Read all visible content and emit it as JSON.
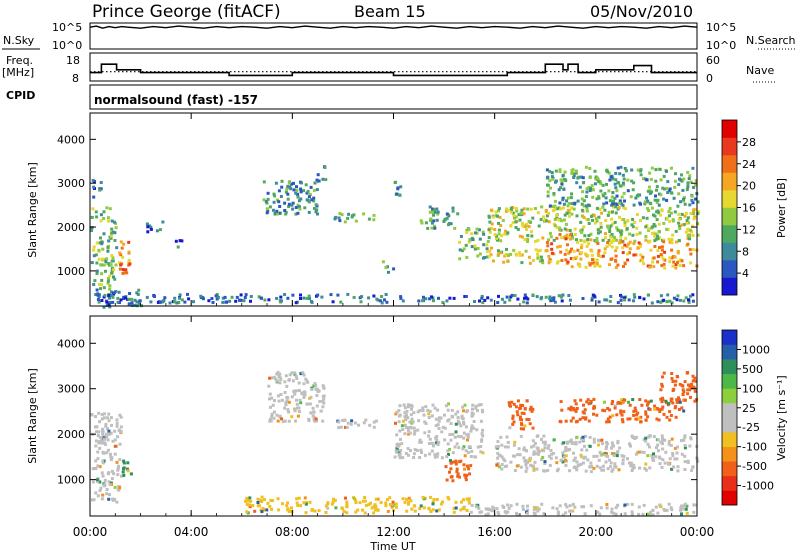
{
  "header": {
    "station": "Prince George (fitACF)",
    "beam": "Beam 15",
    "date": "05/Nov/2010"
  },
  "status_panel": {
    "nsky_label": "N.Sky",
    "nsky_ticks": [
      "10^5",
      "10^0"
    ],
    "nsearch_label": "N.Search",
    "nsearch_ticks": [
      "10^5",
      "10^0"
    ],
    "freq_label": [
      "Freq.",
      "[MHz]"
    ],
    "freq_ticks": [
      "18",
      "8"
    ],
    "nave_label": "Nave",
    "nave_ticks": [
      "60",
      "0"
    ],
    "cpid_label": "CPID",
    "cpid_text": "normalsound (fast) -157",
    "nsky_trace_log": [
      [
        0,
        4.2
      ],
      [
        0.25,
        4.4
      ],
      [
        0.5,
        4.0
      ],
      [
        0.75,
        4.3
      ],
      [
        1.0,
        4.1
      ],
      [
        1.25,
        4.3
      ],
      [
        1.5,
        4.2
      ],
      [
        2.0,
        4.0
      ],
      [
        2.5,
        4.3
      ],
      [
        3.0,
        4.1
      ],
      [
        3.5,
        4.4
      ],
      [
        4.0,
        4.2
      ],
      [
        4.5,
        4.0
      ],
      [
        5.0,
        4.3
      ],
      [
        5.5,
        4.1
      ],
      [
        6.0,
        4.3
      ],
      [
        6.5,
        4.2
      ],
      [
        7.0,
        4.0
      ],
      [
        7.5,
        4.3
      ],
      [
        8.0,
        4.1
      ],
      [
        8.5,
        4.4
      ],
      [
        9.0,
        4.2
      ],
      [
        9.5,
        4.0
      ],
      [
        10.0,
        4.3
      ],
      [
        10.5,
        4.1
      ],
      [
        11.0,
        4.3
      ],
      [
        11.5,
        4.2
      ],
      [
        12.0,
        4.0
      ],
      [
        12.5,
        4.3
      ],
      [
        13.0,
        4.1
      ],
      [
        13.5,
        4.4
      ],
      [
        14.0,
        4.2
      ],
      [
        14.5,
        4.0
      ],
      [
        15.0,
        4.3
      ],
      [
        15.5,
        4.1
      ],
      [
        16.0,
        4.3
      ],
      [
        16.5,
        4.2
      ],
      [
        17.0,
        4.0
      ],
      [
        17.5,
        4.3
      ],
      [
        18.0,
        4.1
      ],
      [
        18.5,
        4.4
      ],
      [
        19.0,
        4.2
      ],
      [
        19.5,
        4.0
      ],
      [
        20.0,
        4.3
      ],
      [
        20.5,
        4.1
      ],
      [
        21.0,
        4.3
      ],
      [
        21.5,
        4.2
      ],
      [
        22.0,
        4.0
      ],
      [
        22.5,
        4.3
      ],
      [
        23.0,
        4.1
      ],
      [
        23.5,
        4.4
      ],
      [
        24.0,
        4.2
      ]
    ],
    "freq_trace_mhz": [
      [
        0,
        11.0
      ],
      [
        0.45,
        11.0
      ],
      [
        0.45,
        14.0
      ],
      [
        1.05,
        14.0
      ],
      [
        1.05,
        12.0
      ],
      [
        2.0,
        12.0
      ],
      [
        2.0,
        11.0
      ],
      [
        5.5,
        11.0
      ],
      [
        5.5,
        10.0
      ],
      [
        8.0,
        10.0
      ],
      [
        8.0,
        11.0
      ],
      [
        12.0,
        11.0
      ],
      [
        12.0,
        10.0
      ],
      [
        16.5,
        10.0
      ],
      [
        16.5,
        11.0
      ],
      [
        18.0,
        11.0
      ],
      [
        18.0,
        14.0
      ],
      [
        18.7,
        14.0
      ],
      [
        18.7,
        12.0
      ],
      [
        18.9,
        12.0
      ],
      [
        18.9,
        14.0
      ],
      [
        19.3,
        14.0
      ],
      [
        19.3,
        11.0
      ],
      [
        20.0,
        11.0
      ],
      [
        20.0,
        12.0
      ],
      [
        21.5,
        12.0
      ],
      [
        21.5,
        13.5
      ],
      [
        22.2,
        13.5
      ],
      [
        22.2,
        11.0
      ],
      [
        24.0,
        11.0
      ]
    ],
    "nave_dotted_level": 20
  },
  "range_time_panels": {
    "x_axis": {
      "label": "Time UT",
      "ticks": [
        "00:00",
        "04:00",
        "08:00",
        "12:00",
        "16:00",
        "20:00",
        "00:00"
      ],
      "range_hours": [
        0,
        24
      ]
    },
    "y_axis": {
      "label": "Slant Range [km]",
      "ticks": [
        "1000",
        "2000",
        "3000",
        "4000"
      ],
      "range_km": [
        200,
        4600
      ]
    }
  },
  "power_colorbar": {
    "label": "Power [dB]",
    "ticks": [
      "4",
      "8",
      "12",
      "16",
      "20",
      "24",
      "28"
    ],
    "colors": [
      "#1818d0",
      "#2a58c0",
      "#3c8a9a",
      "#4fa860",
      "#8fca40",
      "#e6d830",
      "#f5a623",
      "#f07018",
      "#e83820",
      "#e00000"
    ]
  },
  "velocity_colorbar": {
    "label": "Velocity [m s⁻¹]",
    "ticks": [
      "1000",
      "500",
      "100",
      "25",
      "-25",
      "-100",
      "-500",
      "-1000"
    ],
    "colors": [
      "#1a30c8",
      "#2460a8",
      "#2f8f5a",
      "#4cb848",
      "#8ccf3c",
      "#bfbfbf",
      "#bfbfbf",
      "#f0c020",
      "#f59018",
      "#f06018",
      "#e83018",
      "#e00000"
    ]
  },
  "chart_data": [
    {
      "type": "heatmap",
      "title": "Power",
      "xlabel": "Time UT",
      "ylabel": "Slant Range [km]",
      "xlim": [
        0,
        24
      ],
      "ylim": [
        200,
        4600
      ],
      "units": "dB",
      "regions": [
        {
          "t0": 0.0,
          "t1": 1.0,
          "r0": 600,
          "r1": 2500,
          "value": 12
        },
        {
          "t0": 0.0,
          "t1": 0.4,
          "r0": 2700,
          "r1": 3100,
          "value": 6
        },
        {
          "t0": 1.1,
          "t1": 1.6,
          "r0": 900,
          "r1": 1700,
          "value": 22
        },
        {
          "t0": 0.2,
          "t1": 2.0,
          "r0": 200,
          "r1": 600,
          "value": 6
        },
        {
          "t0": 2.2,
          "t1": 3.0,
          "r0": 1900,
          "r1": 2200,
          "value": 6
        },
        {
          "t0": 3.3,
          "t1": 3.6,
          "r0": 1500,
          "r1": 1800,
          "value": 6
        },
        {
          "t0": 6.8,
          "t1": 9.0,
          "r0": 2300,
          "r1": 3100,
          "value": 8
        },
        {
          "t0": 8.9,
          "t1": 9.3,
          "r0": 3000,
          "r1": 3500,
          "value": 8
        },
        {
          "t0": 9.6,
          "t1": 11.2,
          "r0": 2150,
          "r1": 2350,
          "value": 10
        },
        {
          "t0": 11.5,
          "t1": 12.0,
          "r0": 1000,
          "r1": 1300,
          "value": 8
        },
        {
          "t0": 12.0,
          "t1": 12.3,
          "r0": 2700,
          "r1": 3100,
          "value": 8
        },
        {
          "t0": 13.0,
          "t1": 14.5,
          "r0": 2000,
          "r1": 2500,
          "value": 10
        },
        {
          "t0": 14.5,
          "t1": 15.7,
          "r0": 1300,
          "r1": 2000,
          "value": 12
        },
        {
          "t0": 15.7,
          "t1": 18.0,
          "r0": 1200,
          "r1": 1600,
          "value": 16
        },
        {
          "t0": 15.7,
          "t1": 24.0,
          "r0": 1700,
          "r1": 2500,
          "value": 14
        },
        {
          "t0": 18.0,
          "t1": 19.0,
          "r0": 1200,
          "r1": 1900,
          "value": 22
        },
        {
          "t0": 19.0,
          "t1": 24.0,
          "r0": 1100,
          "r1": 1700,
          "value": 20
        },
        {
          "t0": 18.0,
          "t1": 24.0,
          "r0": 2500,
          "r1": 3400,
          "value": 10
        },
        {
          "t0": 0.0,
          "t1": 24.0,
          "r0": 300,
          "r1": 500,
          "value": 6
        }
      ]
    },
    {
      "type": "heatmap",
      "title": "Velocity",
      "xlabel": "Time UT",
      "ylabel": "Slant Range [km]",
      "xlim": [
        0,
        24
      ],
      "ylim": [
        200,
        4600
      ],
      "units": "m/s",
      "regions": [
        {
          "t0": 0.0,
          "t1": 1.2,
          "r0": 500,
          "r1": 2500,
          "value": 0
        },
        {
          "t0": 1.2,
          "t1": 1.6,
          "r0": 1100,
          "r1": 1500,
          "value": 120
        },
        {
          "t0": 7.0,
          "t1": 9.2,
          "r0": 2300,
          "r1": 3400,
          "value": 0
        },
        {
          "t0": 9.6,
          "t1": 11.3,
          "r0": 2150,
          "r1": 2350,
          "value": 0
        },
        {
          "t0": 12.0,
          "t1": 15.5,
          "r0": 1500,
          "r1": 2700,
          "value": 0
        },
        {
          "t0": 14.0,
          "t1": 15.0,
          "r0": 1000,
          "r1": 1500,
          "value": -300
        },
        {
          "t0": 16.0,
          "t1": 24.0,
          "r0": 1200,
          "r1": 2000,
          "value": 0
        },
        {
          "t0": 16.5,
          "t1": 17.5,
          "r0": 2100,
          "r1": 2800,
          "value": -400
        },
        {
          "t0": 18.5,
          "t1": 23.5,
          "r0": 2300,
          "r1": 2800,
          "value": -350
        },
        {
          "t0": 22.5,
          "t1": 24.0,
          "r0": 2700,
          "r1": 3400,
          "value": -350
        },
        {
          "t0": 6.0,
          "t1": 15.0,
          "r0": 300,
          "r1": 650,
          "value": -60
        },
        {
          "t0": 15.0,
          "t1": 24.0,
          "r0": 250,
          "r1": 500,
          "value": 0
        }
      ]
    }
  ]
}
